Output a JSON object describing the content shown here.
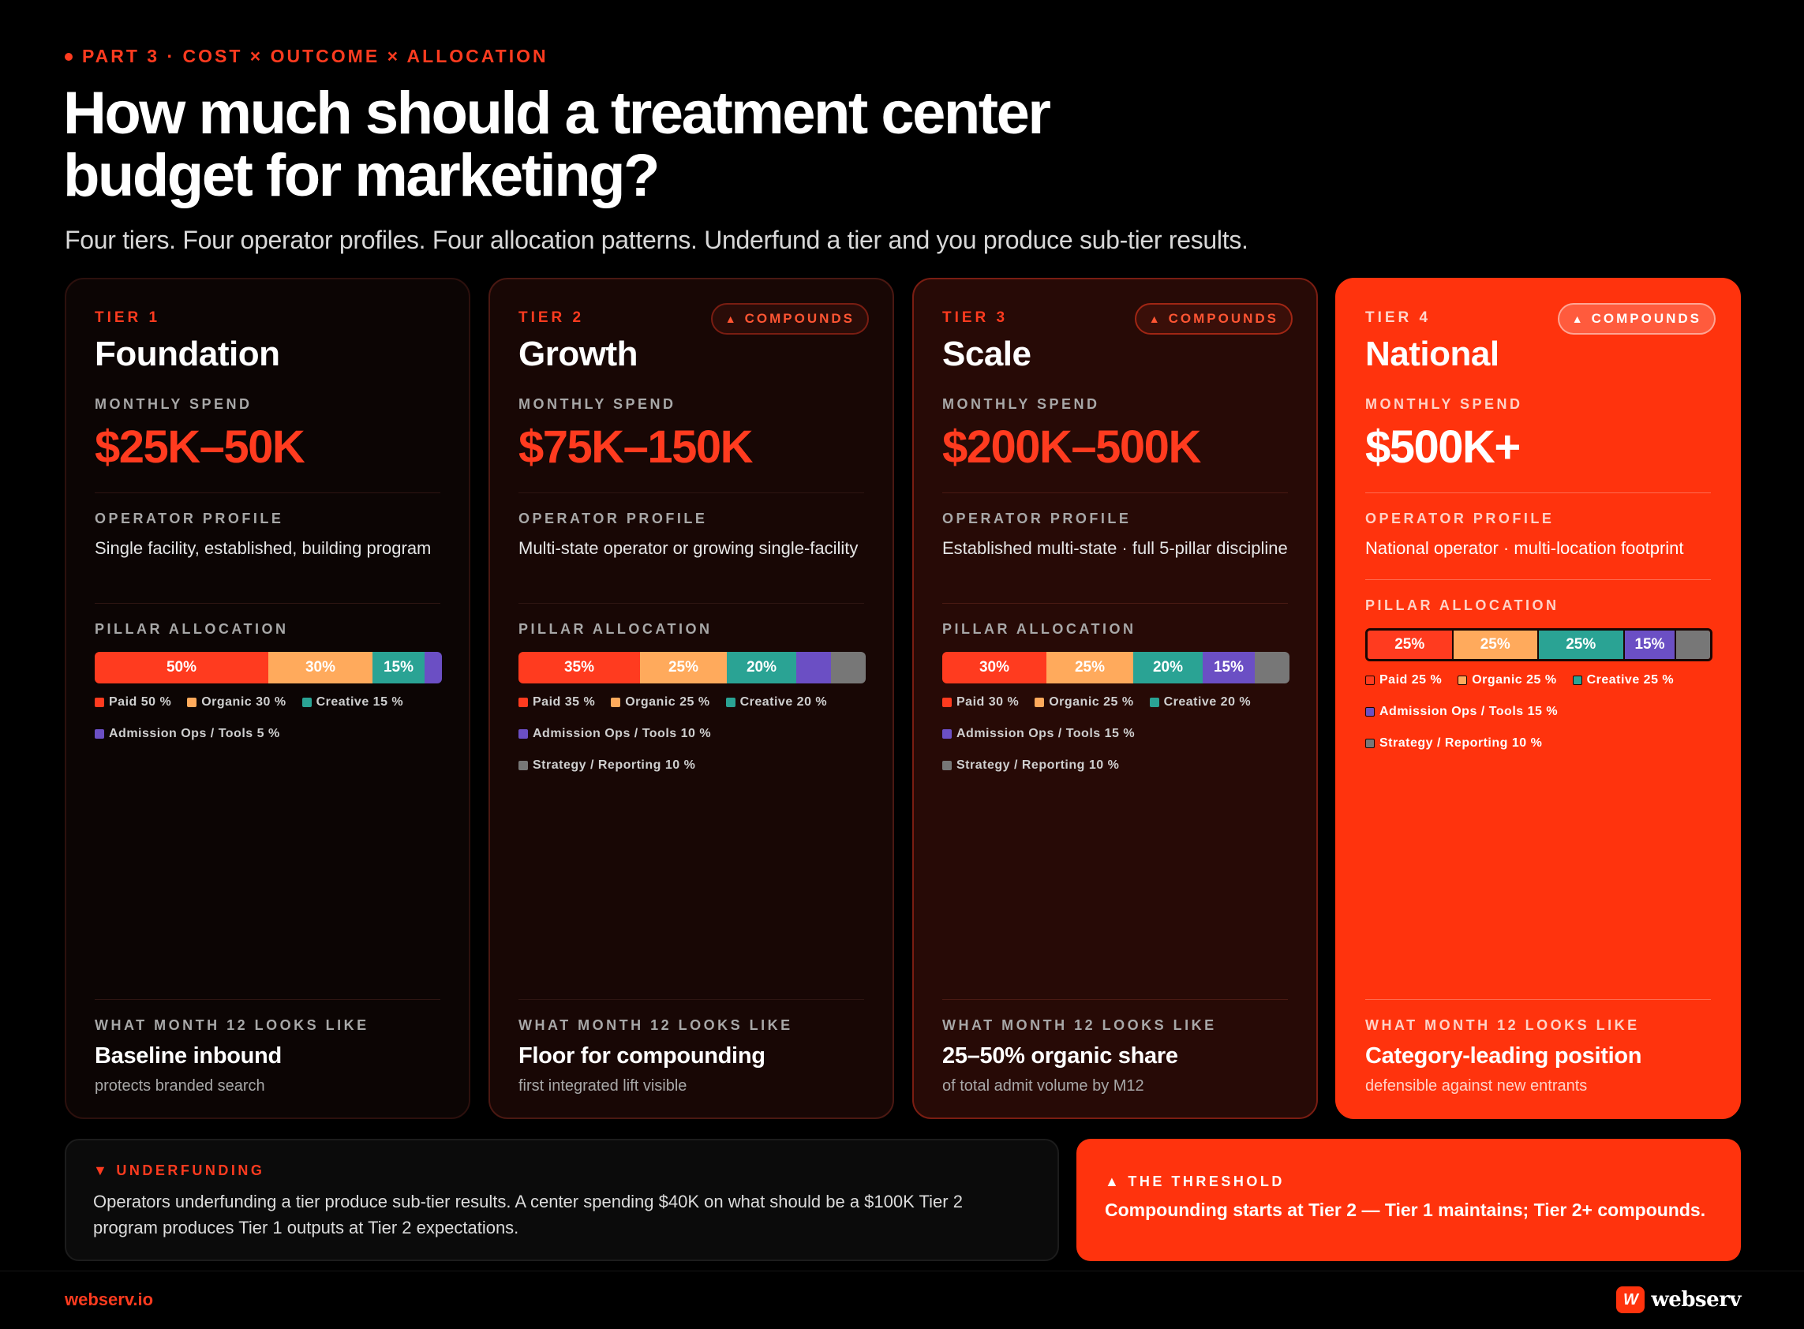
{
  "header": {
    "eyebrow": "PART 3 · COST × OUTCOME × ALLOCATION",
    "title": "How much should a treatment center budget for marketing?",
    "subtitle": "Four tiers. Four operator profiles. Four allocation patterns. Underfund a tier and you produce sub-tier results."
  },
  "labels": {
    "monthly_spend": "MONTHLY SPEND",
    "operator_profile": "OPERATOR PROFILE",
    "pillar_allocation": "PILLAR ALLOCATION",
    "month12": "WHAT MONTH 12 LOOKS LIKE",
    "compounds": "COMPOUNDS"
  },
  "colors": {
    "paid": "#ff3b1f",
    "organic": "#ffaa5c",
    "creative": "#2aa394",
    "admission": "#6b4fc4",
    "strategy": "#777777"
  },
  "tiers": [
    {
      "tier": "TIER 1",
      "name": "Foundation",
      "spend": "$25K–50K",
      "profile": "Single facility, established, building program",
      "month12_title": "Baseline inbound",
      "month12_sub": "protects branded search",
      "allocation": [
        {
          "key": "paid",
          "label": "Paid",
          "value": 50,
          "bar_label": "50%"
        },
        {
          "key": "organic",
          "label": "Organic",
          "value": 30,
          "bar_label": "30%"
        },
        {
          "key": "creative",
          "label": "Creative",
          "value": 15,
          "bar_label": "15%"
        },
        {
          "key": "admission",
          "label": "Admission Ops / Tools",
          "value": 5,
          "bar_label": ""
        }
      ],
      "legend": [
        "Paid 50  %",
        "Organic 30  %",
        "Creative 15  %",
        "Admission Ops / Tools 5  %"
      ]
    },
    {
      "tier": "TIER 2",
      "name": "Growth",
      "spend": "$75K–150K",
      "profile": "Multi-state operator or growing single-facility",
      "month12_title": "Floor for compounding",
      "month12_sub": "first integrated lift visible",
      "allocation": [
        {
          "key": "paid",
          "label": "Paid",
          "value": 35,
          "bar_label": "35%"
        },
        {
          "key": "organic",
          "label": "Organic",
          "value": 25,
          "bar_label": "25%"
        },
        {
          "key": "creative",
          "label": "Creative",
          "value": 20,
          "bar_label": "20%"
        },
        {
          "key": "admission",
          "label": "Admission Ops / Tools",
          "value": 10,
          "bar_label": ""
        },
        {
          "key": "strategy",
          "label": "Strategy / Reporting",
          "value": 10,
          "bar_label": ""
        }
      ],
      "legend": [
        "Paid 35  %",
        "Organic 25  %",
        "Creative 20  %",
        "Admission Ops / Tools 10  %",
        "Strategy / Reporting 10  %"
      ]
    },
    {
      "tier": "TIER 3",
      "name": "Scale",
      "spend": "$200K–500K",
      "profile": "Established multi-state · full 5-pillar discipline",
      "month12_title": "25–50% organic share",
      "month12_sub": "of total admit volume by M12",
      "allocation": [
        {
          "key": "paid",
          "label": "Paid",
          "value": 30,
          "bar_label": "30%"
        },
        {
          "key": "organic",
          "label": "Organic",
          "value": 25,
          "bar_label": "25%"
        },
        {
          "key": "creative",
          "label": "Creative",
          "value": 20,
          "bar_label": "20%"
        },
        {
          "key": "admission",
          "label": "Admission Ops / Tools",
          "value": 15,
          "bar_label": "15%"
        },
        {
          "key": "strategy",
          "label": "Strategy / Reporting",
          "value": 10,
          "bar_label": ""
        }
      ],
      "legend": [
        "Paid 30  %",
        "Organic 25  %",
        "Creative 20  %",
        "Admission Ops / Tools 15  %",
        "Strategy / Reporting 10  %"
      ]
    },
    {
      "tier": "TIER 4",
      "name": "National",
      "spend": "$500K+",
      "profile": "National operator · multi-location footprint",
      "month12_title": "Category-leading position",
      "month12_sub": "defensible against new entrants",
      "allocation": [
        {
          "key": "paid",
          "label": "Paid",
          "value": 25,
          "bar_label": "25%"
        },
        {
          "key": "organic",
          "label": "Organic",
          "value": 25,
          "bar_label": "25%"
        },
        {
          "key": "creative",
          "label": "Creative",
          "value": 25,
          "bar_label": "25%"
        },
        {
          "key": "admission",
          "label": "Admission Ops / Tools",
          "value": 15,
          "bar_label": "15%"
        },
        {
          "key": "strategy",
          "label": "Strategy / Reporting",
          "value": 10,
          "bar_label": ""
        }
      ],
      "legend": [
        "Paid 25  %",
        "Organic 25  %",
        "Creative 25  %",
        "Admission Ops / Tools 15  %",
        "Strategy / Reporting 10  %"
      ]
    }
  ],
  "underfunding": {
    "label": "UNDERFUNDING",
    "text": "Operators underfunding a tier produce sub-tier results. A center spending $40K on what should be a $100K Tier 2 program produces Tier 1 outputs at Tier 2 expectations."
  },
  "threshold": {
    "label": "THE THRESHOLD",
    "text": "Compounding starts at Tier 2 — Tier 1 maintains; Tier 2+ compounds."
  },
  "footer": {
    "url": "webserv.io",
    "brand": "webserv",
    "logo_glyph": "W"
  }
}
